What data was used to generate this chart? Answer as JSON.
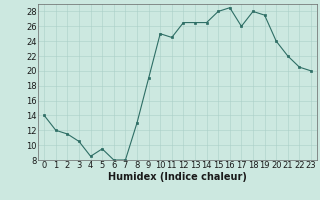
{
  "x": [
    0,
    1,
    2,
    3,
    4,
    5,
    6,
    7,
    8,
    9,
    10,
    11,
    12,
    13,
    14,
    15,
    16,
    17,
    18,
    19,
    20,
    21,
    22,
    23
  ],
  "y": [
    14,
    12,
    11.5,
    10.5,
    8.5,
    9.5,
    8,
    8,
    13,
    19,
    25,
    24.5,
    26.5,
    26.5,
    26.5,
    28,
    28.5,
    26,
    28,
    27.5,
    24,
    22,
    20.5,
    20
  ],
  "line_color": "#2e6e65",
  "marker_color": "#2e6e65",
  "bg_color": "#cce8e0",
  "grid_color": "#aacfc8",
  "xlabel": "Humidex (Indice chaleur)",
  "xlim": [
    -0.5,
    23.5
  ],
  "ylim": [
    8,
    29
  ],
  "yticks": [
    8,
    10,
    12,
    14,
    16,
    18,
    20,
    22,
    24,
    26,
    28
  ],
  "xticks": [
    0,
    1,
    2,
    3,
    4,
    5,
    6,
    7,
    8,
    9,
    10,
    11,
    12,
    13,
    14,
    15,
    16,
    17,
    18,
    19,
    20,
    21,
    22,
    23
  ],
  "font_color": "#1a1a1a",
  "tick_fontsize": 6.0,
  "xlabel_fontsize": 7.0,
  "linewidth": 0.8,
  "markersize": 2.0
}
